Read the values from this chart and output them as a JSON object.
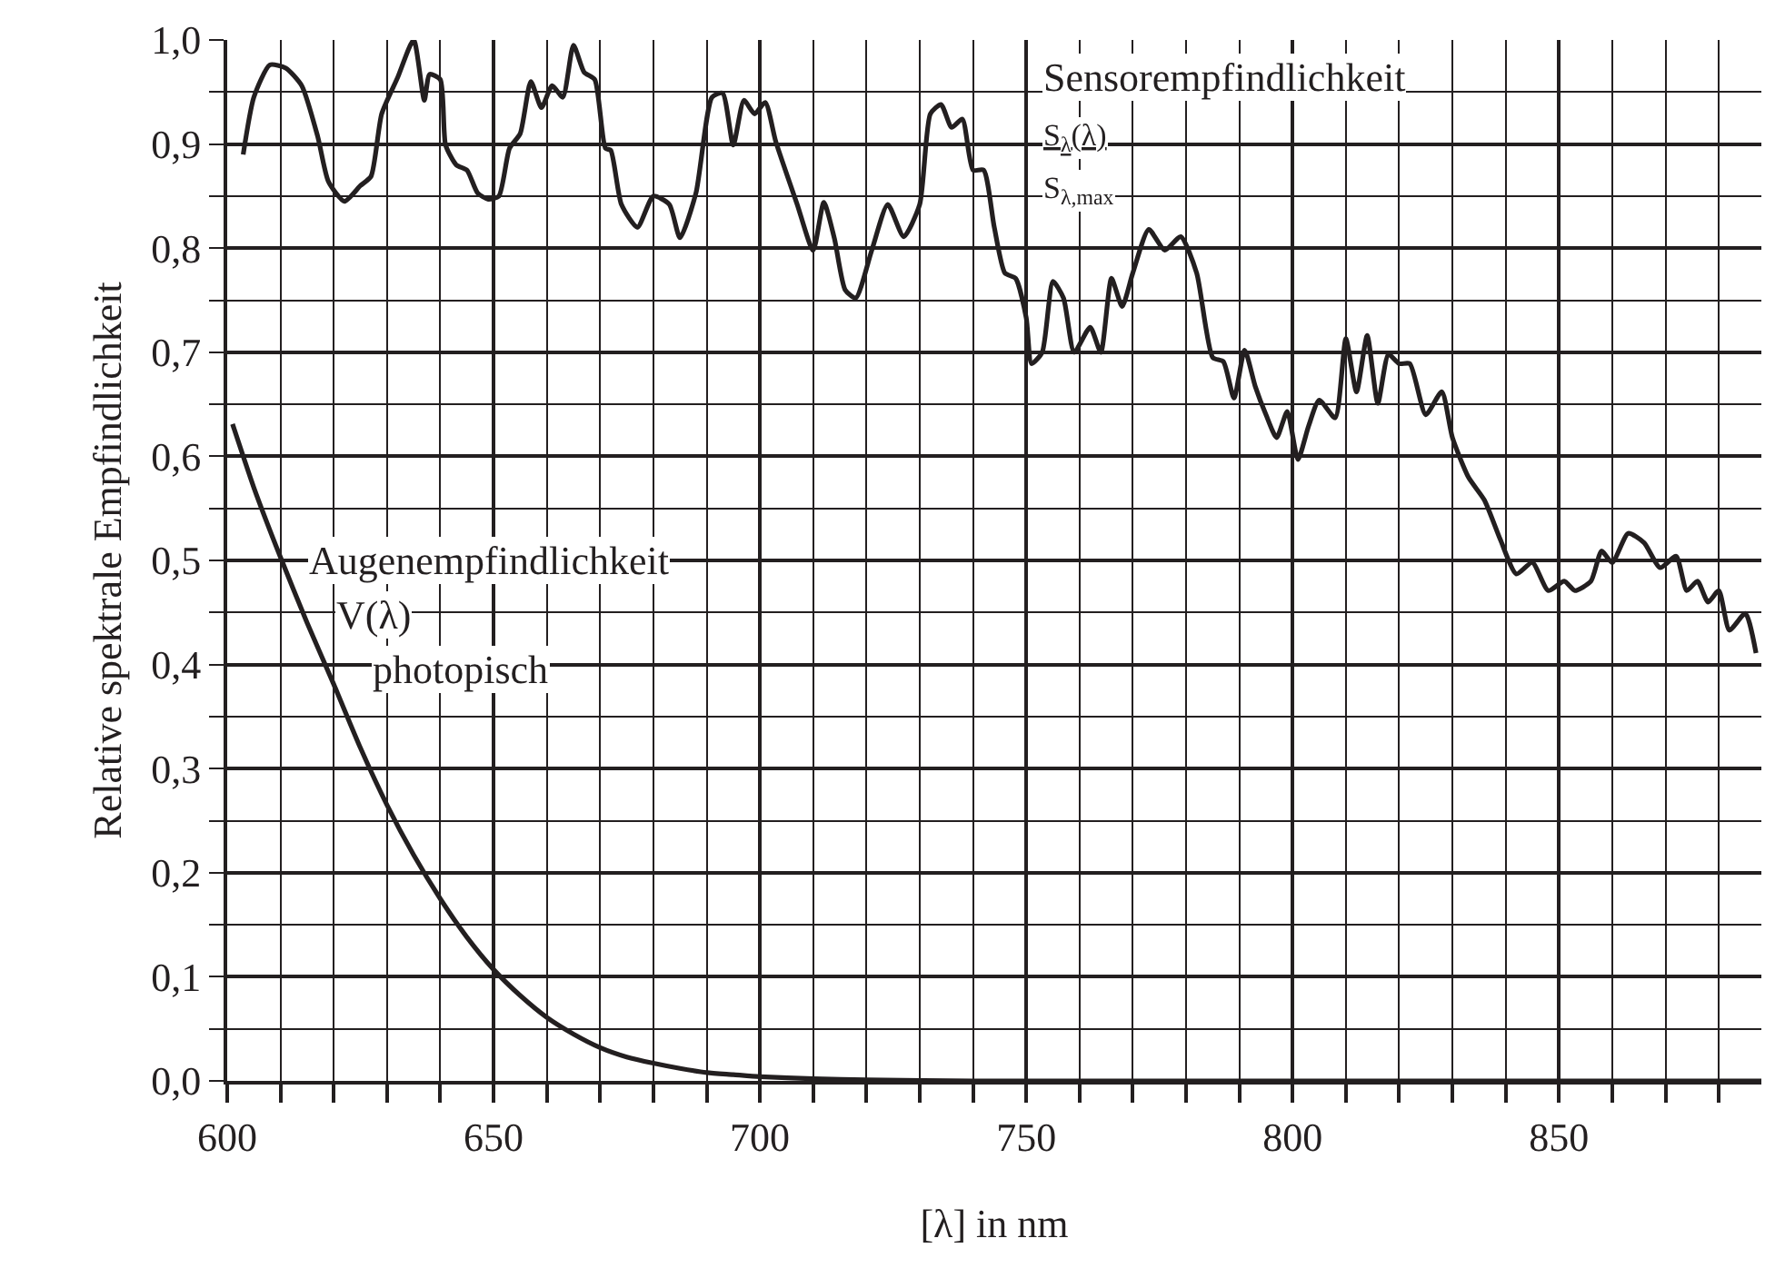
{
  "chart_data": {
    "type": "line",
    "xlabel": "[λ] in nm",
    "ylabel": "Relative spektrale Empfindlichkeit",
    "xlim": [
      600,
      888
    ],
    "xticks": [
      600,
      650,
      700,
      750,
      800,
      850
    ],
    "ylim": [
      0,
      1
    ],
    "yticks": [
      {
        "value": 0,
        "label": "0,0"
      },
      {
        "value": 0.1,
        "label": "0,1"
      },
      {
        "value": 0.2,
        "label": "0,2"
      },
      {
        "value": 0.3,
        "label": "0,3"
      },
      {
        "value": 0.4,
        "label": "0,4"
      },
      {
        "value": 0.5,
        "label": "0,5"
      },
      {
        "value": 0.6,
        "label": "0,6"
      },
      {
        "value": 0.7,
        "label": "0,7"
      },
      {
        "value": 0.8,
        "label": "0,8"
      },
      {
        "value": 0.9,
        "label": "0,9"
      },
      {
        "value": 1.0,
        "label": "1,0"
      }
    ],
    "grid": true,
    "legend": false,
    "marker": "none",
    "line_style": "solid",
    "series": [
      {
        "name": "Sensorempfindlichkeit",
        "color": "#231f20",
        "x": [
          603,
          605,
          608,
          611,
          614,
          617,
          619,
          622,
          625,
          627,
          629,
          632,
          635,
          637,
          638,
          640,
          641,
          643,
          645,
          647,
          649,
          651,
          653,
          655,
          657,
          659,
          661,
          663,
          665,
          667,
          669,
          671,
          672,
          674,
          677,
          680,
          683,
          685,
          688,
          691,
          693,
          695,
          697,
          699,
          701,
          703,
          707,
          710,
          712,
          714,
          716,
          718,
          721,
          724,
          727,
          730,
          732,
          734,
          736,
          738,
          740,
          742,
          744,
          746,
          748,
          750,
          751,
          753,
          755,
          757,
          759,
          762,
          764,
          766,
          768,
          770,
          773,
          776,
          779,
          782,
          785,
          787,
          789,
          791,
          793,
          795,
          797,
          799,
          801,
          803,
          805,
          808,
          810,
          812,
          814,
          816,
          818,
          820,
          822,
          825,
          828,
          830,
          833,
          836,
          839,
          842,
          845,
          848,
          851,
          853,
          856,
          858,
          860,
          863,
          866,
          869,
          872,
          874,
          876,
          878,
          880,
          882,
          885,
          887
        ],
        "values": [
          0.89,
          0.945,
          0.976,
          0.973,
          0.956,
          0.907,
          0.864,
          0.845,
          0.86,
          0.869,
          0.929,
          0.964,
          1.0,
          0.942,
          0.967,
          0.962,
          0.899,
          0.88,
          0.875,
          0.853,
          0.847,
          0.85,
          0.896,
          0.91,
          0.96,
          0.935,
          0.956,
          0.945,
          0.995,
          0.969,
          0.962,
          0.896,
          0.894,
          0.842,
          0.82,
          0.85,
          0.842,
          0.81,
          0.853,
          0.945,
          0.949,
          0.899,
          0.942,
          0.929,
          0.94,
          0.902,
          0.842,
          0.798,
          0.844,
          0.809,
          0.76,
          0.752,
          0.798,
          0.842,
          0.811,
          0.842,
          0.929,
          0.938,
          0.916,
          0.924,
          0.875,
          0.875,
          0.82,
          0.776,
          0.771,
          0.733,
          0.689,
          0.7,
          0.768,
          0.752,
          0.7,
          0.724,
          0.7,
          0.771,
          0.744,
          0.776,
          0.818,
          0.798,
          0.811,
          0.776,
          0.695,
          0.691,
          0.656,
          0.702,
          0.667,
          0.64,
          0.618,
          0.643,
          0.597,
          0.629,
          0.654,
          0.637,
          0.713,
          0.662,
          0.716,
          0.651,
          0.698,
          0.689,
          0.689,
          0.64,
          0.662,
          0.618,
          0.58,
          0.558,
          0.52,
          0.487,
          0.498,
          0.471,
          0.48,
          0.471,
          0.48,
          0.509,
          0.498,
          0.526,
          0.517,
          0.493,
          0.504,
          0.471,
          0.48,
          0.46,
          0.471,
          0.433,
          0.449,
          0.411
        ]
      },
      {
        "name": "Augenempfindlichkeit",
        "color": "#231f20",
        "x": [
          601,
          605,
          610,
          615,
          620,
          625,
          630,
          635,
          640,
          645,
          650,
          655,
          660,
          665,
          670,
          675,
          680,
          685,
          690,
          695,
          700,
          710,
          720,
          740,
          760,
          800,
          850,
          888
        ],
        "values": [
          0.631,
          0.57,
          0.503,
          0.44,
          0.381,
          0.32,
          0.265,
          0.217,
          0.175,
          0.138,
          0.107,
          0.082,
          0.061,
          0.045,
          0.032,
          0.023,
          0.017,
          0.012,
          0.008,
          0.006,
          0.004,
          0.002,
          0.001,
          0,
          0,
          0,
          0,
          0
        ]
      }
    ],
    "annotations": [
      "S$_{λ}$(λ)",
      "S$_{λ,max}$",
      "V(λ)",
      "photopisch"
    ]
  }
}
